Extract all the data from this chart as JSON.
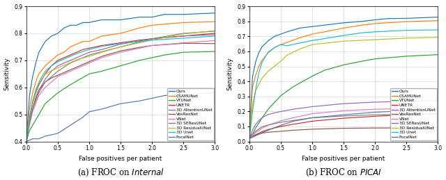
{
  "caption_a": "(a) FROC on $\\mathit{Internal}$",
  "caption_b": "(b) FROC on $\\mathit{PICAI}$",
  "xlabel": "False positives per patient",
  "ylabel": "Sensitivity",
  "xlim": [
    0.0,
    3.0
  ],
  "ylim_a": [
    0.4,
    0.9
  ],
  "ylim_b": [
    0.0,
    0.9
  ],
  "yticks_a": [
    0.4,
    0.5,
    0.6,
    0.7,
    0.8,
    0.9
  ],
  "yticks_b": [
    0.0,
    0.1,
    0.2,
    0.3,
    0.4,
    0.5,
    0.6,
    0.7,
    0.8,
    0.9
  ],
  "xticks": [
    0.0,
    0.5,
    1.0,
    1.5,
    2.0,
    2.5,
    3.0
  ],
  "legend_labels": [
    "Ours",
    "CSAMUNet",
    "VTUNet",
    "UNETR",
    "3D AttentionUNet",
    "VoxResNet",
    "VNet",
    "3D SEResUNet",
    "3D ResidualUNet",
    "3D Unet",
    "FocalNet"
  ],
  "colors": [
    "#1f77b4",
    "#ff7f0e",
    "#2ca02c",
    "#d62728",
    "#9467bd",
    "#8c564b",
    "#e377c2",
    "#7f7f7f",
    "#bcbd22",
    "#17becf",
    "#5577aa"
  ],
  "internal": {
    "Ours": {
      "x": [
        0.0,
        0.05,
        0.1,
        0.15,
        0.2,
        0.3,
        0.4,
        0.5,
        0.6,
        0.7,
        0.8,
        0.9,
        1.0,
        1.2,
        1.5,
        1.8,
        2.0,
        2.2,
        2.5,
        3.0
      ],
      "y": [
        0.4,
        0.57,
        0.64,
        0.69,
        0.73,
        0.77,
        0.79,
        0.8,
        0.82,
        0.83,
        0.83,
        0.84,
        0.84,
        0.85,
        0.85,
        0.86,
        0.86,
        0.87,
        0.87,
        0.875
      ]
    },
    "CSAMUNet": {
      "x": [
        0.0,
        0.05,
        0.1,
        0.15,
        0.2,
        0.3,
        0.4,
        0.5,
        0.6,
        0.7,
        0.8,
        0.9,
        1.0,
        1.2,
        1.5,
        1.8,
        2.0,
        2.5,
        3.0
      ],
      "y": [
        0.4,
        0.52,
        0.58,
        0.62,
        0.65,
        0.68,
        0.7,
        0.72,
        0.73,
        0.75,
        0.76,
        0.77,
        0.77,
        0.79,
        0.8,
        0.82,
        0.83,
        0.84,
        0.843
      ]
    },
    "VTUNet": {
      "x": [
        0.0,
        0.05,
        0.1,
        0.2,
        0.3,
        0.5,
        0.7,
        1.0,
        1.2,
        1.5,
        1.8,
        2.0,
        2.2,
        2.5,
        3.0
      ],
      "y": [
        0.4,
        0.44,
        0.46,
        0.5,
        0.54,
        0.58,
        0.61,
        0.65,
        0.66,
        0.68,
        0.7,
        0.71,
        0.72,
        0.73,
        0.733
      ]
    },
    "UNETR": {
      "x": [
        0.0,
        0.05,
        0.1,
        0.15,
        0.2,
        0.3,
        0.4,
        0.5,
        0.6,
        0.7,
        0.8,
        0.9,
        1.0,
        1.2,
        1.5,
        1.8,
        2.0,
        2.5,
        3.0
      ],
      "y": [
        0.4,
        0.48,
        0.54,
        0.58,
        0.61,
        0.65,
        0.68,
        0.7,
        0.71,
        0.72,
        0.73,
        0.74,
        0.745,
        0.755,
        0.765,
        0.775,
        0.78,
        0.79,
        0.8
      ]
    },
    "3D AttentionUNet": {
      "x": [
        0.0,
        0.05,
        0.1,
        0.15,
        0.2,
        0.3,
        0.4,
        0.5,
        0.6,
        0.8,
        1.0,
        1.2,
        1.5,
        2.0,
        2.5,
        3.0
      ],
      "y": [
        0.4,
        0.47,
        0.52,
        0.56,
        0.59,
        0.63,
        0.66,
        0.68,
        0.69,
        0.71,
        0.73,
        0.74,
        0.76,
        0.78,
        0.79,
        0.795
      ]
    },
    "VoxResNet": {
      "x": [
        0.0,
        0.05,
        0.1,
        0.15,
        0.2,
        0.3,
        0.4,
        0.5,
        0.6,
        0.8,
        1.0,
        1.2,
        1.5,
        1.8,
        2.0,
        2.5,
        3.0
      ],
      "y": [
        0.4,
        0.47,
        0.52,
        0.56,
        0.59,
        0.62,
        0.635,
        0.645,
        0.655,
        0.675,
        0.695,
        0.715,
        0.735,
        0.748,
        0.755,
        0.763,
        0.762
      ]
    },
    "VNet": {
      "x": [
        0.0,
        0.05,
        0.1,
        0.15,
        0.2,
        0.3,
        0.4,
        0.5,
        0.6,
        0.8,
        1.0,
        1.2,
        1.5,
        2.0,
        2.5,
        3.0
      ],
      "y": [
        0.4,
        0.46,
        0.51,
        0.54,
        0.57,
        0.6,
        0.62,
        0.64,
        0.65,
        0.67,
        0.69,
        0.71,
        0.73,
        0.755,
        0.765,
        0.773
      ]
    },
    "3D SEResUNet": {
      "x": [
        0.0,
        0.05,
        0.1,
        0.2,
        0.3,
        0.5,
        0.7,
        1.0,
        1.5,
        2.0,
        2.5,
        3.0
      ],
      "y": [
        0.4,
        0.47,
        0.52,
        0.58,
        0.62,
        0.66,
        0.69,
        0.72,
        0.75,
        0.78,
        0.8,
        0.808
      ]
    },
    "3D ResidualUNet": {
      "x": [
        0.0,
        0.05,
        0.1,
        0.15,
        0.2,
        0.3,
        0.4,
        0.5,
        0.6,
        0.8,
        1.0,
        1.2,
        1.5,
        2.0,
        2.5,
        3.0
      ],
      "y": [
        0.4,
        0.49,
        0.54,
        0.585,
        0.615,
        0.648,
        0.662,
        0.672,
        0.682,
        0.702,
        0.715,
        0.73,
        0.75,
        0.775,
        0.798,
        0.81
      ]
    },
    "3D Unet": {
      "x": [
        0.0,
        0.05,
        0.1,
        0.15,
        0.2,
        0.3,
        0.4,
        0.5,
        0.6,
        0.8,
        1.0,
        1.2,
        1.5,
        1.8,
        2.0,
        2.5,
        3.0
      ],
      "y": [
        0.4,
        0.49,
        0.55,
        0.59,
        0.62,
        0.66,
        0.68,
        0.695,
        0.705,
        0.725,
        0.74,
        0.752,
        0.762,
        0.77,
        0.775,
        0.782,
        0.79
      ]
    },
    "FocalNet": {
      "x": [
        0.0,
        0.1,
        0.2,
        0.3,
        0.5,
        0.7,
        0.9,
        1.0,
        1.2,
        1.5,
        1.8,
        2.0,
        2.2,
        2.5,
        3.0
      ],
      "y": [
        0.4,
        0.41,
        0.41,
        0.42,
        0.43,
        0.46,
        0.49,
        0.51,
        0.52,
        0.54,
        0.55,
        0.56,
        0.57,
        0.575,
        0.58
      ]
    }
  },
  "picai": {
    "Ours": {
      "x": [
        0.0,
        0.05,
        0.1,
        0.15,
        0.2,
        0.3,
        0.4,
        0.5,
        0.6,
        0.8,
        1.0,
        1.2,
        1.5,
        1.8,
        2.0,
        2.2,
        2.5,
        3.0
      ],
      "y": [
        0.02,
        0.43,
        0.53,
        0.59,
        0.63,
        0.67,
        0.7,
        0.715,
        0.73,
        0.755,
        0.765,
        0.775,
        0.79,
        0.8,
        0.81,
        0.818,
        0.82,
        0.828
      ]
    },
    "CSAMUNet": {
      "x": [
        0.0,
        0.05,
        0.1,
        0.15,
        0.2,
        0.3,
        0.4,
        0.5,
        0.6,
        0.8,
        1.0,
        1.2,
        1.5,
        1.8,
        2.0,
        2.5,
        3.0
      ],
      "y": [
        0.02,
        0.36,
        0.44,
        0.5,
        0.54,
        0.59,
        0.625,
        0.645,
        0.66,
        0.69,
        0.715,
        0.73,
        0.755,
        0.775,
        0.785,
        0.798,
        0.805
      ]
    },
    "VTUNet": {
      "x": [
        0.0,
        0.05,
        0.1,
        0.2,
        0.3,
        0.5,
        0.7,
        1.0,
        1.2,
        1.5,
        1.8,
        2.0,
        2.5,
        3.0
      ],
      "y": [
        0.02,
        0.05,
        0.09,
        0.155,
        0.215,
        0.305,
        0.365,
        0.435,
        0.475,
        0.51,
        0.535,
        0.55,
        0.568,
        0.578
      ]
    },
    "UNETR": {
      "x": [
        0.0,
        0.05,
        0.1,
        0.2,
        0.3,
        0.5,
        0.7,
        1.0,
        1.5,
        2.0,
        2.5,
        3.0
      ],
      "y": [
        0.02,
        0.035,
        0.045,
        0.065,
        0.08,
        0.1,
        0.115,
        0.135,
        0.155,
        0.168,
        0.178,
        0.188
      ]
    },
    "3D AttentionUNet": {
      "x": [
        0.0,
        0.05,
        0.1,
        0.15,
        0.2,
        0.3,
        0.5,
        0.7,
        1.0,
        1.5,
        2.0,
        2.5,
        3.0
      ],
      "y": [
        0.02,
        0.075,
        0.115,
        0.138,
        0.158,
        0.18,
        0.2,
        0.215,
        0.232,
        0.252,
        0.262,
        0.268,
        0.272
      ]
    },
    "VoxResNet": {
      "x": [
        0.0,
        0.05,
        0.1,
        0.2,
        0.3,
        0.5,
        0.7,
        1.0,
        1.5,
        2.0,
        2.5,
        3.0
      ],
      "y": [
        0.02,
        0.035,
        0.042,
        0.055,
        0.062,
        0.068,
        0.075,
        0.082,
        0.088,
        0.09,
        0.09,
        0.092
      ]
    },
    "VNet": {
      "x": [
        0.0,
        0.05,
        0.1,
        0.2,
        0.3,
        0.5,
        0.7,
        1.0,
        1.5,
        2.0,
        2.5,
        3.0
      ],
      "y": [
        0.02,
        0.038,
        0.058,
        0.088,
        0.108,
        0.138,
        0.158,
        0.185,
        0.205,
        0.215,
        0.218,
        0.222
      ]
    },
    "3D SEResUNet": {
      "x": [
        0.0,
        0.05,
        0.1,
        0.2,
        0.3,
        0.5,
        0.7,
        1.0,
        1.5,
        2.0,
        2.5,
        3.0
      ],
      "y": [
        0.02,
        0.048,
        0.068,
        0.098,
        0.11,
        0.128,
        0.14,
        0.158,
        0.17,
        0.178,
        0.18,
        0.182
      ]
    },
    "3D ResidualUNet": {
      "x": [
        0.0,
        0.05,
        0.1,
        0.2,
        0.3,
        0.5,
        0.6,
        0.8,
        1.0,
        1.5,
        2.0,
        2.5,
        3.0
      ],
      "y": [
        0.02,
        0.245,
        0.338,
        0.42,
        0.468,
        0.535,
        0.575,
        0.615,
        0.645,
        0.668,
        0.678,
        0.688,
        0.693
      ]
    },
    "3D Unet": {
      "x": [
        0.0,
        0.05,
        0.1,
        0.15,
        0.2,
        0.3,
        0.4,
        0.5,
        0.6,
        0.8,
        1.0,
        1.2,
        1.5,
        1.8,
        2.0,
        2.5,
        3.0
      ],
      "y": [
        0.02,
        0.195,
        0.345,
        0.455,
        0.525,
        0.595,
        0.625,
        0.645,
        0.638,
        0.655,
        0.672,
        0.685,
        0.706,
        0.724,
        0.73,
        0.74,
        0.743
      ]
    },
    "FocalNet": {
      "x": [
        0.0,
        0.05,
        0.1,
        0.2,
        0.3,
        0.5,
        0.7,
        1.0,
        1.5,
        2.0,
        2.5,
        3.0
      ],
      "y": [
        0.02,
        0.028,
        0.038,
        0.058,
        0.075,
        0.108,
        0.135,
        0.158,
        0.178,
        0.195,
        0.205,
        0.212
      ]
    }
  }
}
